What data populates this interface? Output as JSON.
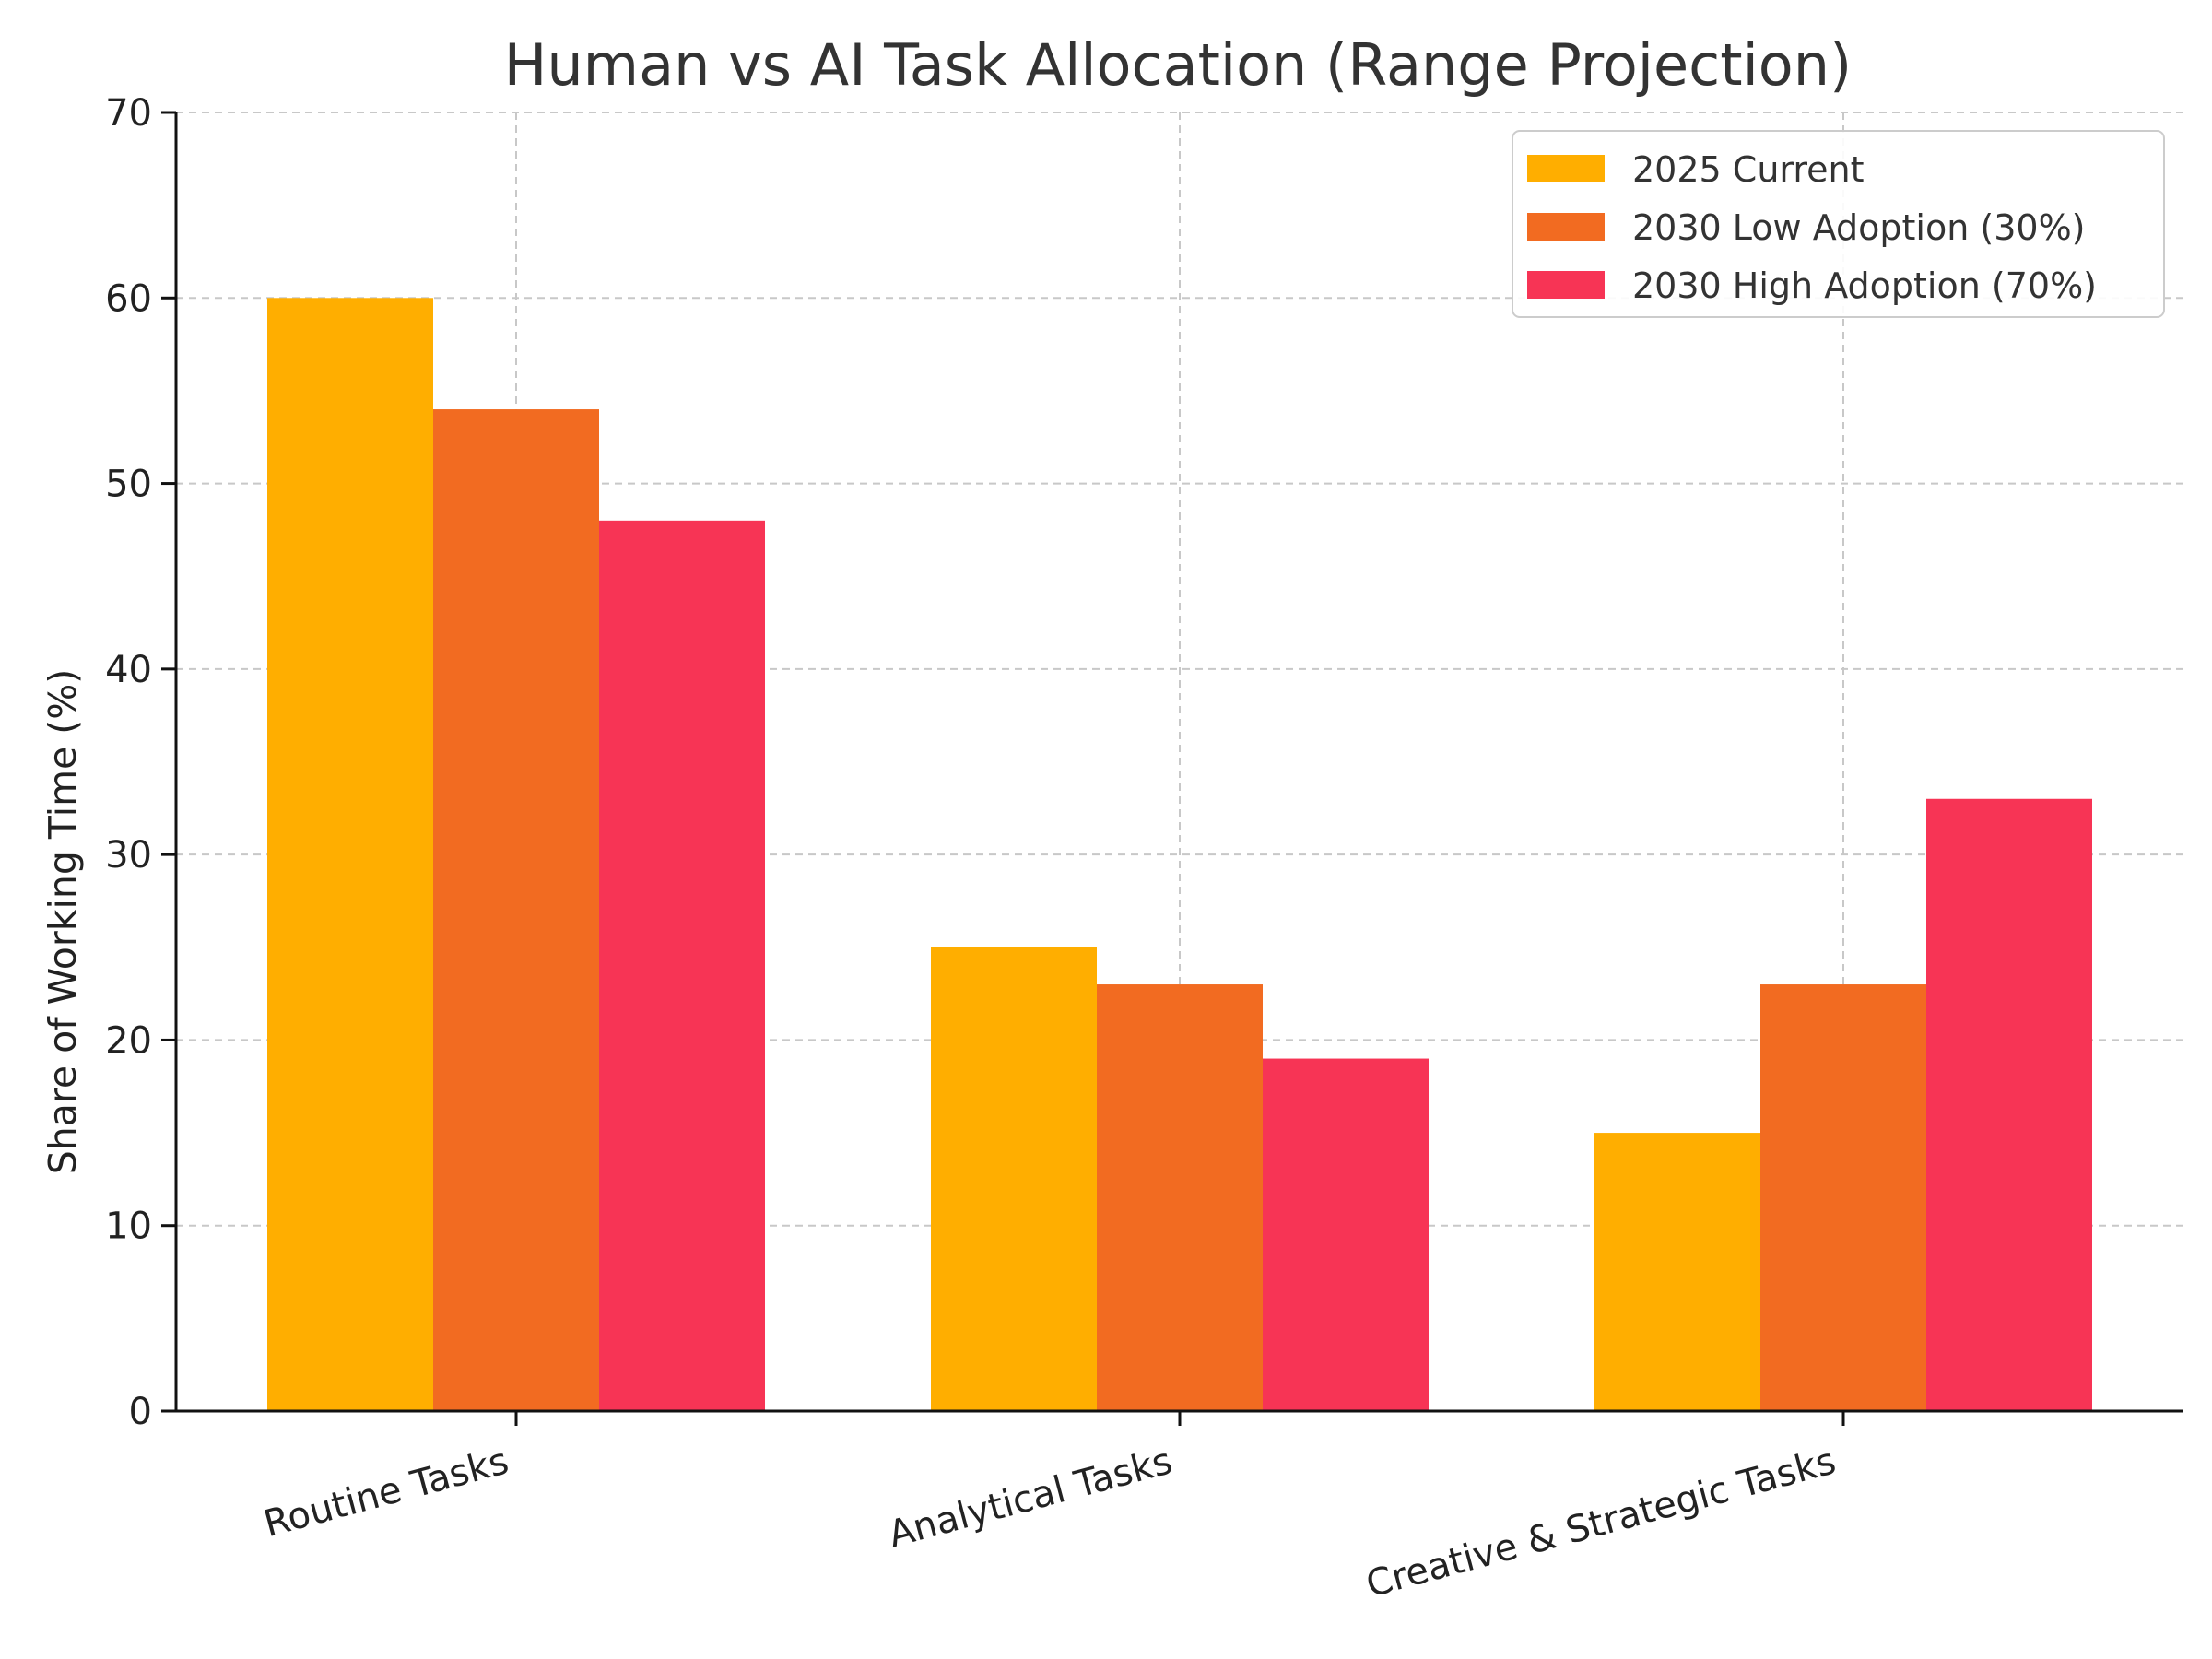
{
  "chart_data": {
    "type": "bar",
    "title": "Human vs AI Task Allocation (Range Projection)",
    "xlabel": "",
    "ylabel": "Share of Working Time (%)",
    "ylim": [
      0,
      70
    ],
    "yticks": [
      0,
      10,
      20,
      30,
      40,
      50,
      60,
      70
    ],
    "categories": [
      "Routine Tasks",
      "Analytical Tasks",
      "Creative & Strategic Tasks"
    ],
    "series": [
      {
        "name": "2025 Current",
        "color": "#FFAE00",
        "values": [
          60,
          25,
          15
        ]
      },
      {
        "name": "2030 Low Adoption (30%)",
        "color": "#F26B21",
        "values": [
          54,
          23,
          23
        ]
      },
      {
        "name": "2030 High Adoption (70%)",
        "color": "#F73455",
        "values": [
          48,
          19,
          33
        ]
      }
    ],
    "grid": true,
    "legend_position": "top-right"
  }
}
